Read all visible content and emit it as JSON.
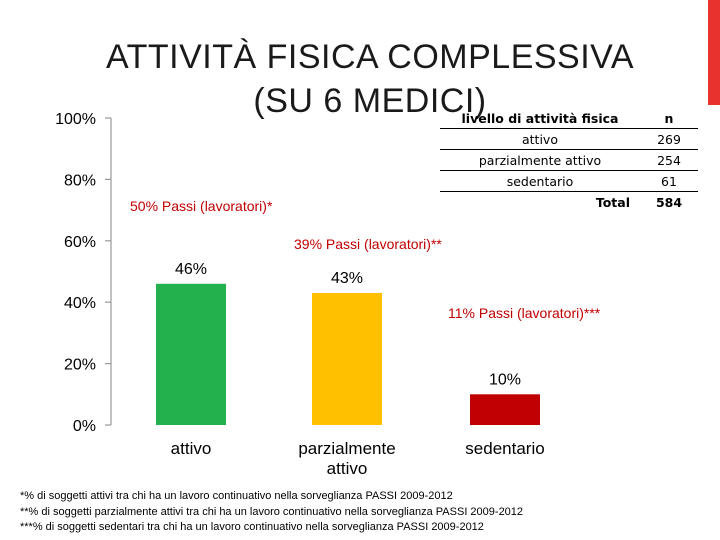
{
  "title": {
    "line1": "ATTIVITÀ FISICA COMPLESSIVA",
    "line2": "(SU 6 MEDICI)"
  },
  "colors": {
    "accent": "#e8322d",
    "attivo": "#22b14c",
    "parzialmente_attivo": "#ffc000",
    "sedentario": "#c00000",
    "note_text": "#c00000"
  },
  "chart_data": {
    "type": "bar",
    "categories": [
      "attivo",
      "parzialmente attivo",
      "sedentario"
    ],
    "values": [
      46,
      43,
      10
    ],
    "value_labels": [
      "46%",
      "43%",
      "10%"
    ],
    "y_ticks": [
      0,
      20,
      40,
      60,
      80,
      100
    ],
    "y_tick_labels": [
      "0%",
      "20%",
      "40%",
      "60%",
      "80%",
      "100%"
    ],
    "ylim": [
      0,
      100
    ],
    "grid": false,
    "annotations": [
      "50% Passi (lavoratori)*",
      "39% Passi (lavoratori)**",
      "11% Passi (lavoratori)***"
    ]
  },
  "table": {
    "headers": [
      "livello di attività fisica",
      "n"
    ],
    "rows": [
      {
        "label": "attivo",
        "n": "269"
      },
      {
        "label": "parzialmente attivo",
        "n": "254"
      },
      {
        "label": "sedentario",
        "n": "61"
      }
    ],
    "total_label": "Total",
    "total_n": "584"
  },
  "footnotes": [
    "*% di soggetti attivi tra chi ha un lavoro continuativo nella sorveglianza PASSI 2009-2012",
    "**% di soggetti parzialmente attivi tra chi ha un lavoro continuativo nella sorveglianza PASSI 2009-2012",
    "***% di soggetti sedentari tra chi ha un lavoro continuativo nella sorveglianza PASSI 2009-2012"
  ]
}
